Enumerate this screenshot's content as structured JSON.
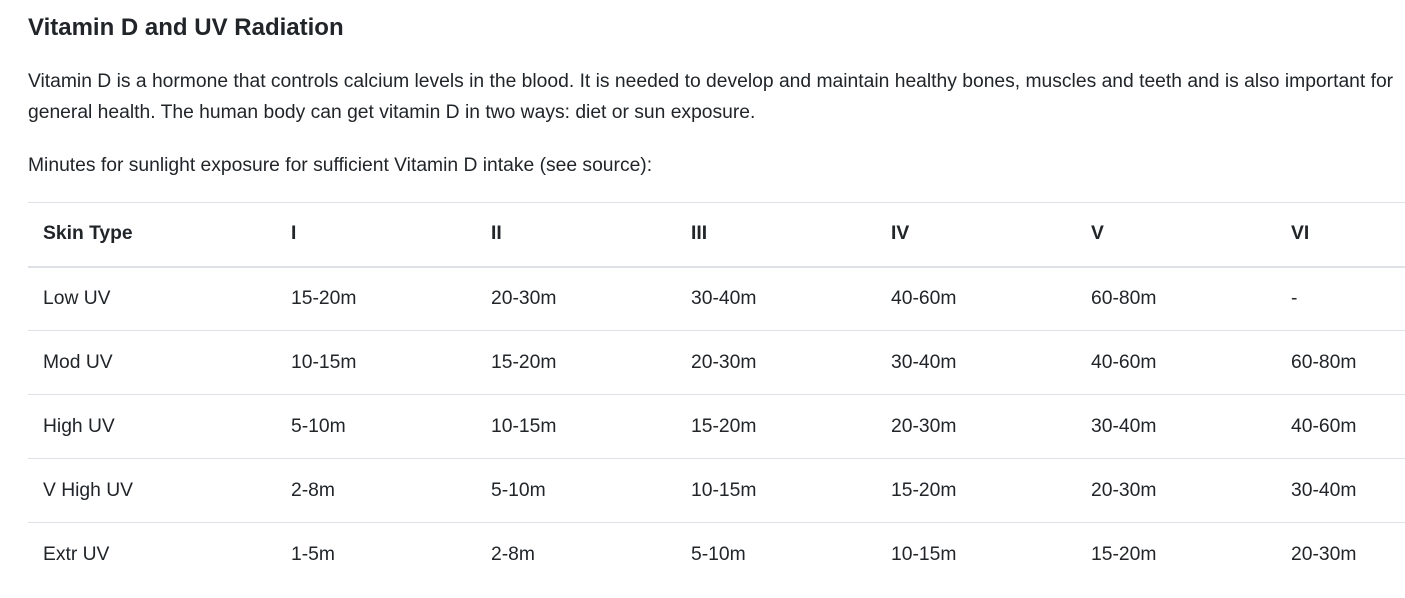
{
  "page": {
    "title": "Vitamin D and UV Radiation",
    "intro": "Vitamin D is a hormone that controls calcium levels in the blood. It is needed to develop and maintain healthy bones, muscles and teeth and is also important for general health. The human body can get vitamin D in two ways: diet or sun exposure.",
    "subtitle": "Minutes for sunlight exposure for sufficient Vitamin D intake (see source):"
  },
  "table": {
    "headers": [
      "Skin Type",
      "I",
      "II",
      "III",
      "IV",
      "V",
      "VI"
    ],
    "rows": [
      [
        "Low UV",
        "15-20m",
        "20-30m",
        "30-40m",
        "40-60m",
        "60-80m",
        "-"
      ],
      [
        "Mod UV",
        "10-15m",
        "15-20m",
        "20-30m",
        "30-40m",
        "40-60m",
        "60-80m"
      ],
      [
        "High UV",
        "5-10m",
        "10-15m",
        "15-20m",
        "20-30m",
        "30-40m",
        "40-60m"
      ],
      [
        "V High UV",
        "2-8m",
        "5-10m",
        "10-15m",
        "15-20m",
        "20-30m",
        "30-40m"
      ],
      [
        "Extr UV",
        "1-5m",
        "2-8m",
        "5-10m",
        "10-15m",
        "15-20m",
        "20-30m"
      ]
    ]
  },
  "colors": {
    "text": "#212529",
    "border": "#dee2e6",
    "background": "#ffffff"
  }
}
